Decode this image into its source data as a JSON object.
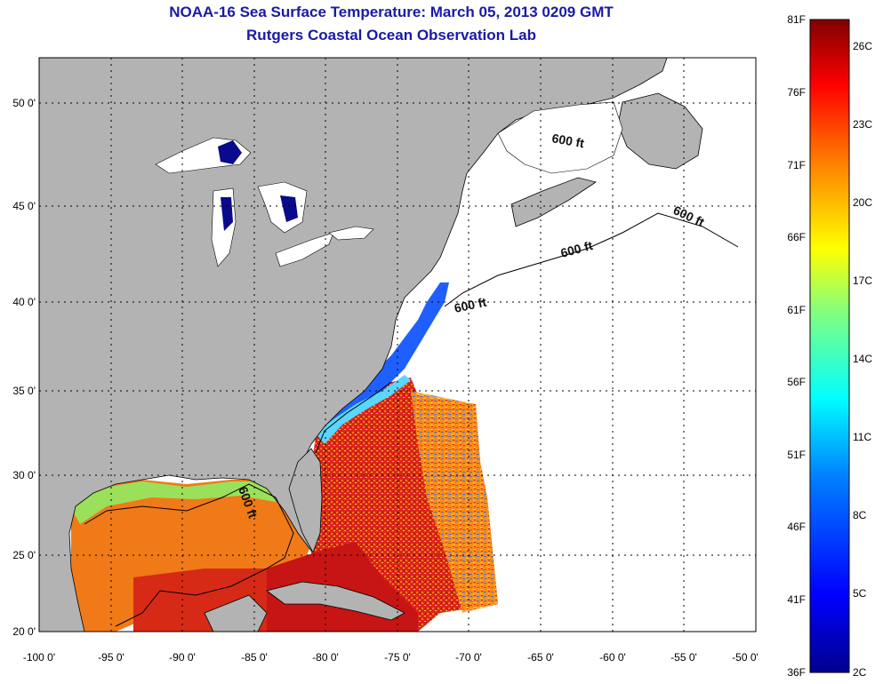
{
  "title_line1": "NOAA-16 Sea Surface Temperature:  March 05, 2013 0209 GMT",
  "title_line2": "Rutgers Coastal Ocean Observation Lab",
  "map": {
    "lon_labels": [
      "-100 0'",
      "-95 0'",
      "-90 0'",
      "-85 0'",
      "-80 0'",
      "-75 0'",
      "-70 0'",
      "-65 0'",
      "-60 0'",
      "-55 0'",
      "-50 0'"
    ],
    "lat_labels": [
      "50 0'",
      "45 0'",
      "40 0'",
      "35 0'",
      "30 0'",
      "25 0'",
      "20 0'"
    ],
    "bathymetry_labels": [
      "600 ft",
      "600 ft",
      "600 ft",
      "600 ft",
      "600 ft"
    ],
    "colors": {
      "land": "#b3b3b3",
      "ocean_nodata": "#ffffff",
      "lakes": "#0a0a8c"
    }
  },
  "colorbar": {
    "fahrenheit": [
      "81F",
      "76F",
      "71F",
      "66F",
      "61F",
      "56F",
      "51F",
      "46F",
      "41F",
      "36F"
    ],
    "celsius": [
      "26C",
      "23C",
      "20C",
      "17C",
      "14C",
      "11C",
      "8C",
      "5C",
      "2C"
    ],
    "colormap": [
      "#00008f",
      "#0000ff",
      "#0080ff",
      "#00ffff",
      "#80ff80",
      "#ffff00",
      "#ff8000",
      "#ff0000",
      "#800000"
    ]
  }
}
